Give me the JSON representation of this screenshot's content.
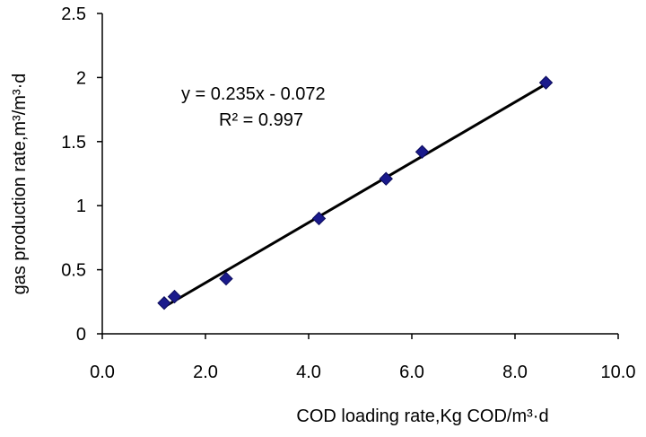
{
  "chart_data": {
    "type": "scatter",
    "title": "",
    "xlabel": "COD loading rate,Kg COD/m³·d",
    "ylabel": "gas production rate,m³/m³·d",
    "xlim": [
      0,
      10
    ],
    "ylim": [
      0,
      2.5
    ],
    "x_ticks": [
      "0.0",
      "2.0",
      "4.0",
      "6.0",
      "8.0",
      "10.0"
    ],
    "y_ticks": [
      "0",
      "0.5",
      "1",
      "1.5",
      "2",
      "2.5"
    ],
    "grid": false,
    "legend": "none",
    "series": [
      {
        "name": "gas production rate",
        "marker": "diamond",
        "color": "#1a1a8c",
        "x": [
          1.2,
          1.4,
          2.4,
          4.2,
          5.5,
          6.2,
          8.6
        ],
        "y": [
          0.24,
          0.29,
          0.43,
          0.9,
          1.21,
          1.42,
          1.96
        ]
      }
    ],
    "trendline": {
      "type": "linear",
      "slope": 0.235,
      "intercept": -0.072,
      "x_range": [
        1.2,
        8.6
      ],
      "color": "#000000",
      "equation": "y = 0.235x - 0.072",
      "r_squared": "R² = 0.997"
    }
  }
}
